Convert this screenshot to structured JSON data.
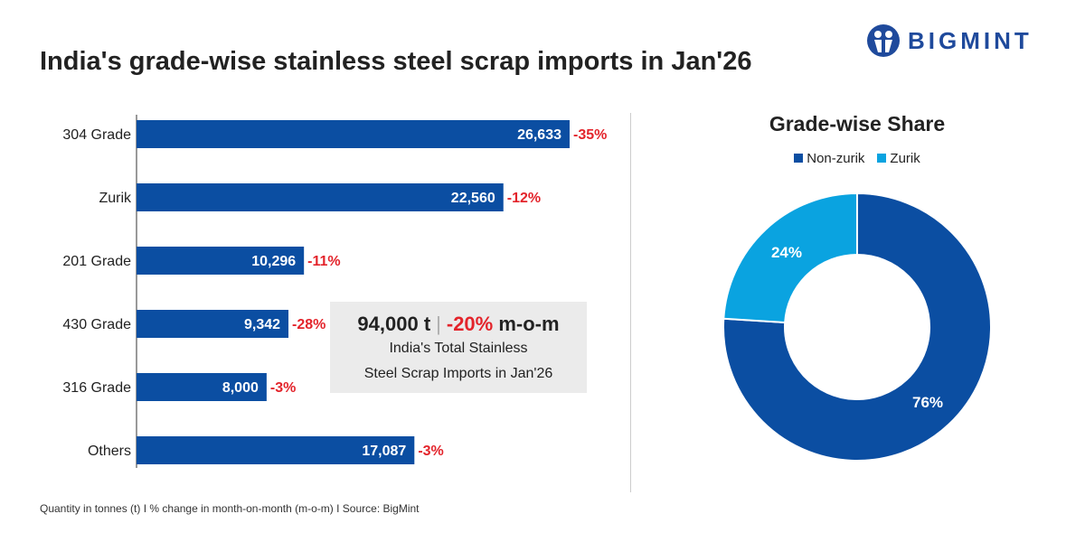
{
  "title": "India's grade-wise stainless steel scrap imports in Jan'26",
  "logo": "BIGMINT",
  "colors": {
    "bar": "#0b4ea2",
    "zurik": "#0aa3e0",
    "negative": "#e3242b"
  },
  "chart_data": [
    {
      "type": "bar",
      "orientation": "horizontal",
      "categories": [
        "304 Grade",
        "Zurik",
        "201 Grade",
        "430 Grade",
        "316 Grade",
        "Others"
      ],
      "values": [
        26633,
        22560,
        10296,
        9342,
        8000,
        17087
      ],
      "value_labels": [
        "26,633",
        "22,560",
        "10,296",
        "9,342",
        "8,000",
        "17,087"
      ],
      "change_labels": [
        "-35%",
        "-12%",
        "-11%",
        "-28%",
        "-3%",
        "-3%"
      ],
      "grid": false
    },
    {
      "type": "pie",
      "style": "donut",
      "title": "Grade-wise Share",
      "categories": [
        "Non-zurik",
        "Zurik"
      ],
      "values": [
        76,
        24
      ],
      "labels": [
        "76%",
        "24%"
      ],
      "legend": "top"
    }
  ],
  "summary": {
    "total": "94,000 t",
    "change": "-20%",
    "unit": "m-o-m",
    "line1": "India's Total Stainless",
    "line2": "Steel Scrap Imports in Jan'26"
  },
  "footer": "Quantity in tonnes (t)  I  % change in month-on-month (m-o-m)  I  Source: BigMint"
}
